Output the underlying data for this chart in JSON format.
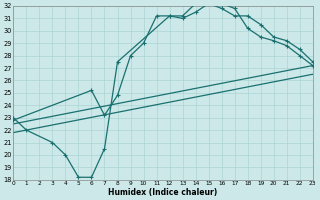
{
  "xlabel": "Humidex (Indice chaleur)",
  "xlim": [
    0,
    23
  ],
  "ylim": [
    18,
    32
  ],
  "xticks": [
    0,
    1,
    2,
    3,
    4,
    5,
    6,
    7,
    8,
    9,
    10,
    11,
    12,
    13,
    14,
    15,
    16,
    17,
    18,
    19,
    20,
    21,
    22,
    23
  ],
  "yticks": [
    18,
    19,
    20,
    21,
    22,
    23,
    24,
    25,
    26,
    27,
    28,
    29,
    30,
    31,
    32
  ],
  "line_color": "#1a7070",
  "bg_color": "#cce8e8",
  "grid_color": "#aad4d4",
  "line1_x": [
    0,
    1,
    3,
    4,
    5,
    6,
    7,
    8,
    12,
    13,
    14,
    15,
    16,
    17,
    18,
    19,
    20,
    21,
    22,
    23
  ],
  "line1_y": [
    23,
    22,
    21,
    20,
    18.2,
    18.2,
    20.5,
    27.5,
    31.2,
    31.0,
    31.5,
    32.2,
    32.2,
    31.8,
    30.2,
    29.5,
    29.2,
    28.8,
    28.0,
    27.2
  ],
  "line2_x": [
    0,
    6,
    7,
    8,
    9,
    10,
    11,
    12,
    13,
    14,
    15,
    16,
    17,
    18,
    19,
    20,
    21,
    22,
    23
  ],
  "line2_y": [
    22.8,
    25.2,
    23.2,
    24.8,
    28.0,
    29.0,
    31.2,
    31.2,
    31.2,
    32.2,
    32.2,
    31.8,
    31.2,
    31.2,
    30.5,
    29.5,
    29.2,
    28.5,
    27.5
  ],
  "line3_x": [
    0,
    23
  ],
  "line3_y": [
    22.5,
    27.2
  ],
  "line4_x": [
    0,
    23
  ],
  "line4_y": [
    21.8,
    26.5
  ]
}
